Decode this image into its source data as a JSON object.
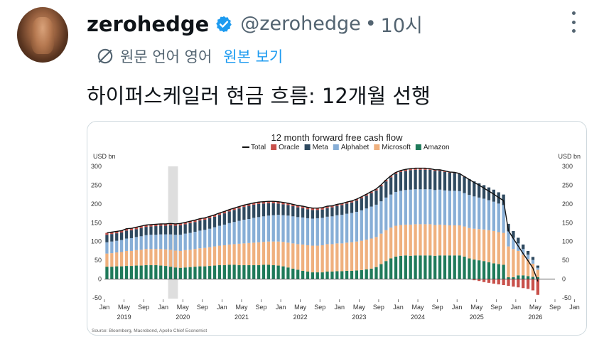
{
  "tweet": {
    "author_name": "zerohedge",
    "handle": "@zerohedge",
    "separator": "•",
    "time": "10시",
    "translate_label": "원문 언어 영어",
    "translate_link": "원본 보기",
    "text": "하이퍼스케일러 현금 흐름: 12개월 선행"
  },
  "icons": [
    "verified-badge-icon",
    "more-options-icon",
    "translate-icon"
  ],
  "colors": {
    "verified": "#1d9bf0",
    "link": "#1d9bf0",
    "muted": "#536471",
    "Oracle": "#c8504a",
    "Meta": "#2f4a60",
    "Alphabet": "#87aed6",
    "Microsoft": "#efb07e",
    "Amazon": "#1f7a5a",
    "Total": "#111111"
  },
  "chart_data": {
    "type": "bar",
    "stacked": true,
    "title": "12 month forward free cash flow",
    "ylabel_left": "USD bn",
    "ylabel_right": "USD bn",
    "ylim": [
      -50,
      300
    ],
    "yticks": [
      -50,
      0,
      50,
      100,
      150,
      200,
      250,
      300
    ],
    "legend": [
      "Total",
      "Oracle",
      "Meta",
      "Alphabet",
      "Microsoft",
      "Amazon"
    ],
    "legend_position": "top",
    "month_labels": [
      "Jan",
      "May",
      "Sep",
      "Jan",
      "May",
      "Sep",
      "Jan",
      "May",
      "Sep",
      "Jan",
      "May",
      "Sep",
      "Jan",
      "May",
      "Sep",
      "Jan",
      "May",
      "Sep",
      "Jan",
      "May",
      "Sep",
      "Jan",
      "May",
      "Sep",
      "Jan",
      "May",
      "Sep"
    ],
    "year_labels": [
      "2019",
      "2020",
      "2021",
      "2022",
      "2023",
      "2024",
      "2025",
      "2026"
    ],
    "x_start": "2019-01",
    "x_end": "2026-09",
    "shaded_period": [
      "2020-02",
      "2020-04"
    ],
    "source": "Source: Bloomberg, Macrobond, Apollo Chief Economist",
    "series": [
      {
        "name": "Amazon",
        "values": [
          33,
          33,
          34,
          34,
          35,
          35,
          36,
          36,
          37,
          37,
          37,
          36,
          35,
          33,
          31,
          30,
          31,
          32,
          33,
          34,
          34,
          35,
          36,
          37,
          37,
          38,
          38,
          37,
          37,
          37,
          37,
          37,
          38,
          38,
          37,
          36,
          34,
          31,
          28,
          25,
          22,
          20,
          18,
          18,
          18,
          20,
          20,
          21,
          21,
          22,
          22,
          23,
          24,
          26,
          28,
          32,
          40,
          48,
          55,
          60,
          62,
          63,
          62,
          63,
          63,
          63,
          63,
          62,
          63,
          63,
          63,
          63,
          63,
          60,
          55,
          52,
          50,
          48,
          45,
          42,
          40,
          38,
          5,
          5,
          10,
          10,
          8,
          6,
          5
        ]
      },
      {
        "name": "Microsoft",
        "values": [
          35,
          36,
          37,
          38,
          40,
          40,
          41,
          42,
          43,
          43,
          43,
          44,
          44,
          45,
          45,
          45,
          46,
          46,
          47,
          48,
          49,
          50,
          51,
          52,
          53,
          54,
          55,
          57,
          58,
          59,
          60,
          61,
          61,
          62,
          63,
          64,
          65,
          66,
          67,
          68,
          70,
          70,
          71,
          71,
          72,
          73,
          73,
          74,
          74,
          75,
          76,
          77,
          78,
          79,
          80,
          80,
          81,
          82,
          82,
          82,
          82,
          82,
          83,
          83,
          83,
          83,
          83,
          82,
          82,
          81,
          80,
          80,
          80,
          80,
          81,
          82,
          83,
          84,
          85,
          86,
          85,
          85,
          82,
          75,
          65,
          55,
          45,
          35,
          20
        ]
      },
      {
        "name": "Alphabet",
        "values": [
          30,
          31,
          31,
          32,
          33,
          34,
          35,
          36,
          37,
          38,
          38,
          39,
          40,
          41,
          42,
          43,
          44,
          45,
          46,
          47,
          48,
          49,
          51,
          53,
          55,
          57,
          59,
          61,
          63,
          64,
          66,
          67,
          68,
          69,
          70,
          71,
          71,
          72,
          72,
          72,
          72,
          72,
          72,
          73,
          73,
          73,
          74,
          75,
          76,
          77,
          78,
          79,
          81,
          83,
          85,
          86,
          86,
          87,
          88,
          90,
          91,
          92,
          93,
          93,
          93,
          93,
          93,
          93,
          93,
          92,
          92,
          92,
          91,
          89,
          88,
          86,
          84,
          82,
          80,
          78,
          76,
          74,
          40,
          30,
          20,
          15,
          12,
          10,
          5
        ]
      },
      {
        "name": "Meta",
        "values": [
          20,
          20,
          20,
          20,
          21,
          21,
          21,
          22,
          22,
          22,
          23,
          23,
          23,
          24,
          24,
          25,
          25,
          26,
          26,
          27,
          27,
          28,
          28,
          29,
          30,
          31,
          32,
          33,
          34,
          35,
          35,
          35,
          34,
          33,
          32,
          30,
          29,
          28,
          27,
          26,
          25,
          24,
          23,
          22,
          22,
          23,
          24,
          25,
          26,
          27,
          28,
          30,
          32,
          34,
          36,
          38,
          40,
          43,
          46,
          48,
          50,
          51,
          52,
          52,
          52,
          52,
          52,
          51,
          50,
          49,
          48,
          47,
          46,
          44,
          42,
          40,
          38,
          36,
          34,
          32,
          30,
          28,
          20,
          18,
          15,
          12,
          10,
          8,
          6
        ]
      },
      {
        "name": "Oracle",
        "values": [
          5,
          5,
          5,
          5,
          5,
          5,
          5,
          5,
          5,
          5,
          5,
          5,
          5,
          5,
          5,
          5,
          5,
          5,
          5,
          5,
          5,
          5,
          5,
          5,
          5,
          5,
          5,
          5,
          5,
          5,
          5,
          5,
          5,
          5,
          5,
          5,
          5,
          5,
          5,
          5,
          5,
          5,
          5,
          5,
          5,
          5,
          4,
          4,
          4,
          4,
          4,
          4,
          4,
          4,
          4,
          4,
          4,
          4,
          4,
          4,
          4,
          4,
          4,
          4,
          4,
          4,
          3,
          3,
          3,
          3,
          2,
          2,
          1,
          0,
          -1,
          -3,
          -5,
          -8,
          -10,
          -12,
          -14,
          -16,
          -18,
          -20,
          -22,
          -24,
          -26,
          -30,
          -42
        ]
      }
    ]
  }
}
